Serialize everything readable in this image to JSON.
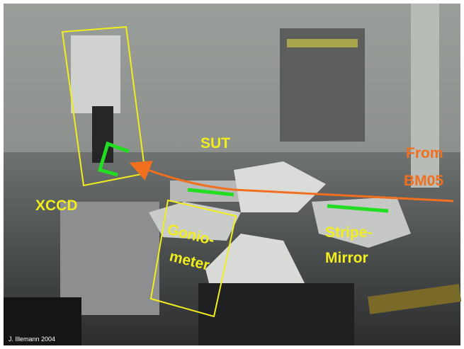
{
  "labels": {
    "sut": "SUT",
    "from_line1": "From",
    "from_line2": "BM05",
    "xccd": "XCCD",
    "gonio_line1": "Gonio-",
    "gonio_line2": "meter",
    "stripe_line1": "Stripe-",
    "stripe_line2": "Mirror",
    "credit": "J. Illemann 2004"
  }
}
